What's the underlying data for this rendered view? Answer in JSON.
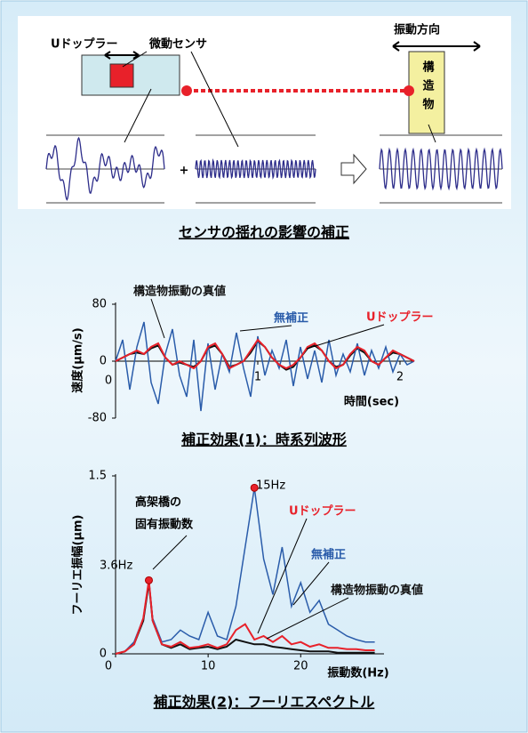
{
  "diagram": {
    "labels": {
      "doppler": "Uドップラー",
      "sensor": "微動センサ",
      "direction": "振動方向",
      "structure": "構造物"
    },
    "caption": "センサの揺れの影響の補正"
  },
  "chart_data": [
    {
      "type": "line",
      "title": "補正効果(1)：時系列波形",
      "x_label": "時間(sec)",
      "y_label": "速度(μm/s)",
      "x": [
        0,
        0.05,
        0.1,
        0.15,
        0.2,
        0.25,
        0.3,
        0.35,
        0.4,
        0.45,
        0.5,
        0.55,
        0.6,
        0.65,
        0.7,
        0.75,
        0.8,
        0.85,
        0.9,
        0.95,
        1,
        1.05,
        1.1,
        1.15,
        1.2,
        1.25,
        1.3,
        1.35,
        1.4,
        1.45,
        1.5,
        1.55,
        1.6,
        1.65,
        1.7,
        1.75,
        1.8,
        1.85,
        1.9,
        1.95,
        2,
        2.05,
        2.1
      ],
      "xlim": [
        0,
        2.1
      ],
      "xticks": [
        0,
        1,
        2
      ],
      "ylim": [
        -80,
        80
      ],
      "yticks": [
        80,
        0,
        -80
      ],
      "series": [
        {
          "name": "構造物振動の真値",
          "color": "#111111",
          "values": [
            0,
            5,
            10,
            12,
            10,
            18,
            22,
            5,
            -5,
            -2,
            -5,
            -8,
            0,
            18,
            22,
            10,
            -8,
            -5,
            0,
            12,
            28,
            20,
            5,
            -5,
            -12,
            -8,
            5,
            18,
            22,
            15,
            0,
            -8,
            -5,
            8,
            18,
            12,
            0,
            -5,
            5,
            12,
            10,
            5,
            0
          ]
        },
        {
          "name": "無補正",
          "color": "#2a5caa",
          "values": [
            0,
            30,
            -40,
            20,
            55,
            -30,
            -60,
            10,
            45,
            -20,
            -50,
            30,
            -70,
            25,
            -40,
            10,
            -15,
            40,
            -10,
            -50,
            35,
            -20,
            15,
            -10,
            30,
            -35,
            20,
            -25,
            15,
            -30,
            30,
            -20,
            10,
            -15,
            25,
            -20,
            15,
            -10,
            20,
            -15,
            10,
            -5,
            0
          ]
        },
        {
          "name": "Uドップラー",
          "color": "#e8212a",
          "values": [
            0,
            5,
            10,
            15,
            10,
            20,
            25,
            5,
            -5,
            0,
            -5,
            -10,
            0,
            20,
            25,
            10,
            -10,
            -5,
            0,
            15,
            30,
            20,
            5,
            -5,
            -10,
            -5,
            5,
            20,
            25,
            15,
            0,
            -10,
            -5,
            10,
            20,
            15,
            0,
            -5,
            5,
            15,
            10,
            5,
            0
          ]
        }
      ]
    },
    {
      "type": "line",
      "title": "補正効果(2)：フーリエスペクトル",
      "x_label": "振動数(Hz)",
      "y_label": "フーリエ振幅(μm)",
      "x": [
        0,
        1,
        2,
        3,
        3.6,
        4,
        5,
        6,
        7,
        8,
        9,
        10,
        11,
        12,
        13,
        14,
        15,
        16,
        17,
        18,
        19,
        20,
        21,
        22,
        23,
        24,
        25,
        26,
        27,
        28
      ],
      "xlim": [
        0,
        29
      ],
      "xticks": [
        0,
        10,
        20
      ],
      "ylim": [
        0,
        1.5
      ],
      "yticks": [
        0,
        1.5
      ],
      "annotations": [
        "高架橋の",
        "固有振動数",
        "3.6Hz",
        "15Hz"
      ],
      "series": [
        {
          "name": "構造物振動の真値",
          "color": "#111111",
          "values": [
            0,
            0.02,
            0.08,
            0.28,
            0.6,
            0.28,
            0.08,
            0.05,
            0.08,
            0.04,
            0.05,
            0.06,
            0.04,
            0.06,
            0.12,
            0.1,
            0.08,
            0.08,
            0.06,
            0.05,
            0.04,
            0.03,
            0.02,
            0.02,
            0.02,
            0.01,
            0.01,
            0.01,
            0.01,
            0.01
          ]
        },
        {
          "name": "無補正",
          "color": "#2a5caa",
          "values": [
            0,
            0.02,
            0.1,
            0.3,
            0.62,
            0.3,
            0.1,
            0.12,
            0.2,
            0.15,
            0.12,
            0.35,
            0.15,
            0.12,
            0.4,
            0.9,
            1.4,
            0.8,
            0.5,
            0.9,
            0.4,
            0.6,
            0.35,
            0.45,
            0.25,
            0.2,
            0.15,
            0.12,
            0.1,
            0.1
          ]
        },
        {
          "name": "Uドップラー",
          "color": "#e8212a",
          "values": [
            0,
            0.02,
            0.08,
            0.3,
            0.62,
            0.28,
            0.08,
            0.06,
            0.1,
            0.05,
            0.06,
            0.08,
            0.05,
            0.08,
            0.2,
            0.25,
            0.12,
            0.15,
            0.1,
            0.15,
            0.08,
            0.1,
            0.06,
            0.08,
            0.05,
            0.05,
            0.04,
            0.04,
            0.03,
            0.03
          ]
        }
      ]
    }
  ]
}
